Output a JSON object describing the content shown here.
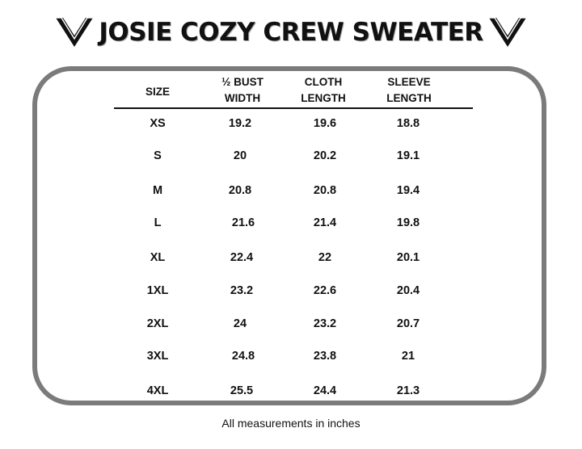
{
  "title": "JOSIE COZY CREW SWEATER",
  "logo_icon": "chevron-v-logo-icon",
  "columns": [
    "SIZE",
    "½ BUST\nWIDTH",
    "CLOTH\nLENGTH",
    "SLEEVE\nLENGTH"
  ],
  "rows": [
    [
      "XS",
      "19.2",
      "19.6",
      "18.8"
    ],
    [
      "S",
      "20",
      "20.2",
      "19.1"
    ],
    [
      "M",
      "20.8",
      "20.8",
      "19.4"
    ],
    [
      "L",
      "21.6",
      "21.4",
      "19.8"
    ],
    [
      "XL",
      "22.4",
      "22",
      "20.1"
    ],
    [
      "1XL",
      "23.2",
      "22.6",
      "20.4"
    ],
    [
      "2XL",
      "24",
      "23.2",
      "20.7"
    ],
    [
      "3XL",
      "24.8",
      "23.8",
      "21"
    ],
    [
      "4XL",
      "25.5",
      "24.4",
      "21.3"
    ]
  ],
  "footer": "All measurements in inches",
  "colors": {
    "text": "#111111",
    "border": "#7b7b7b",
    "background": "#ffffff"
  }
}
